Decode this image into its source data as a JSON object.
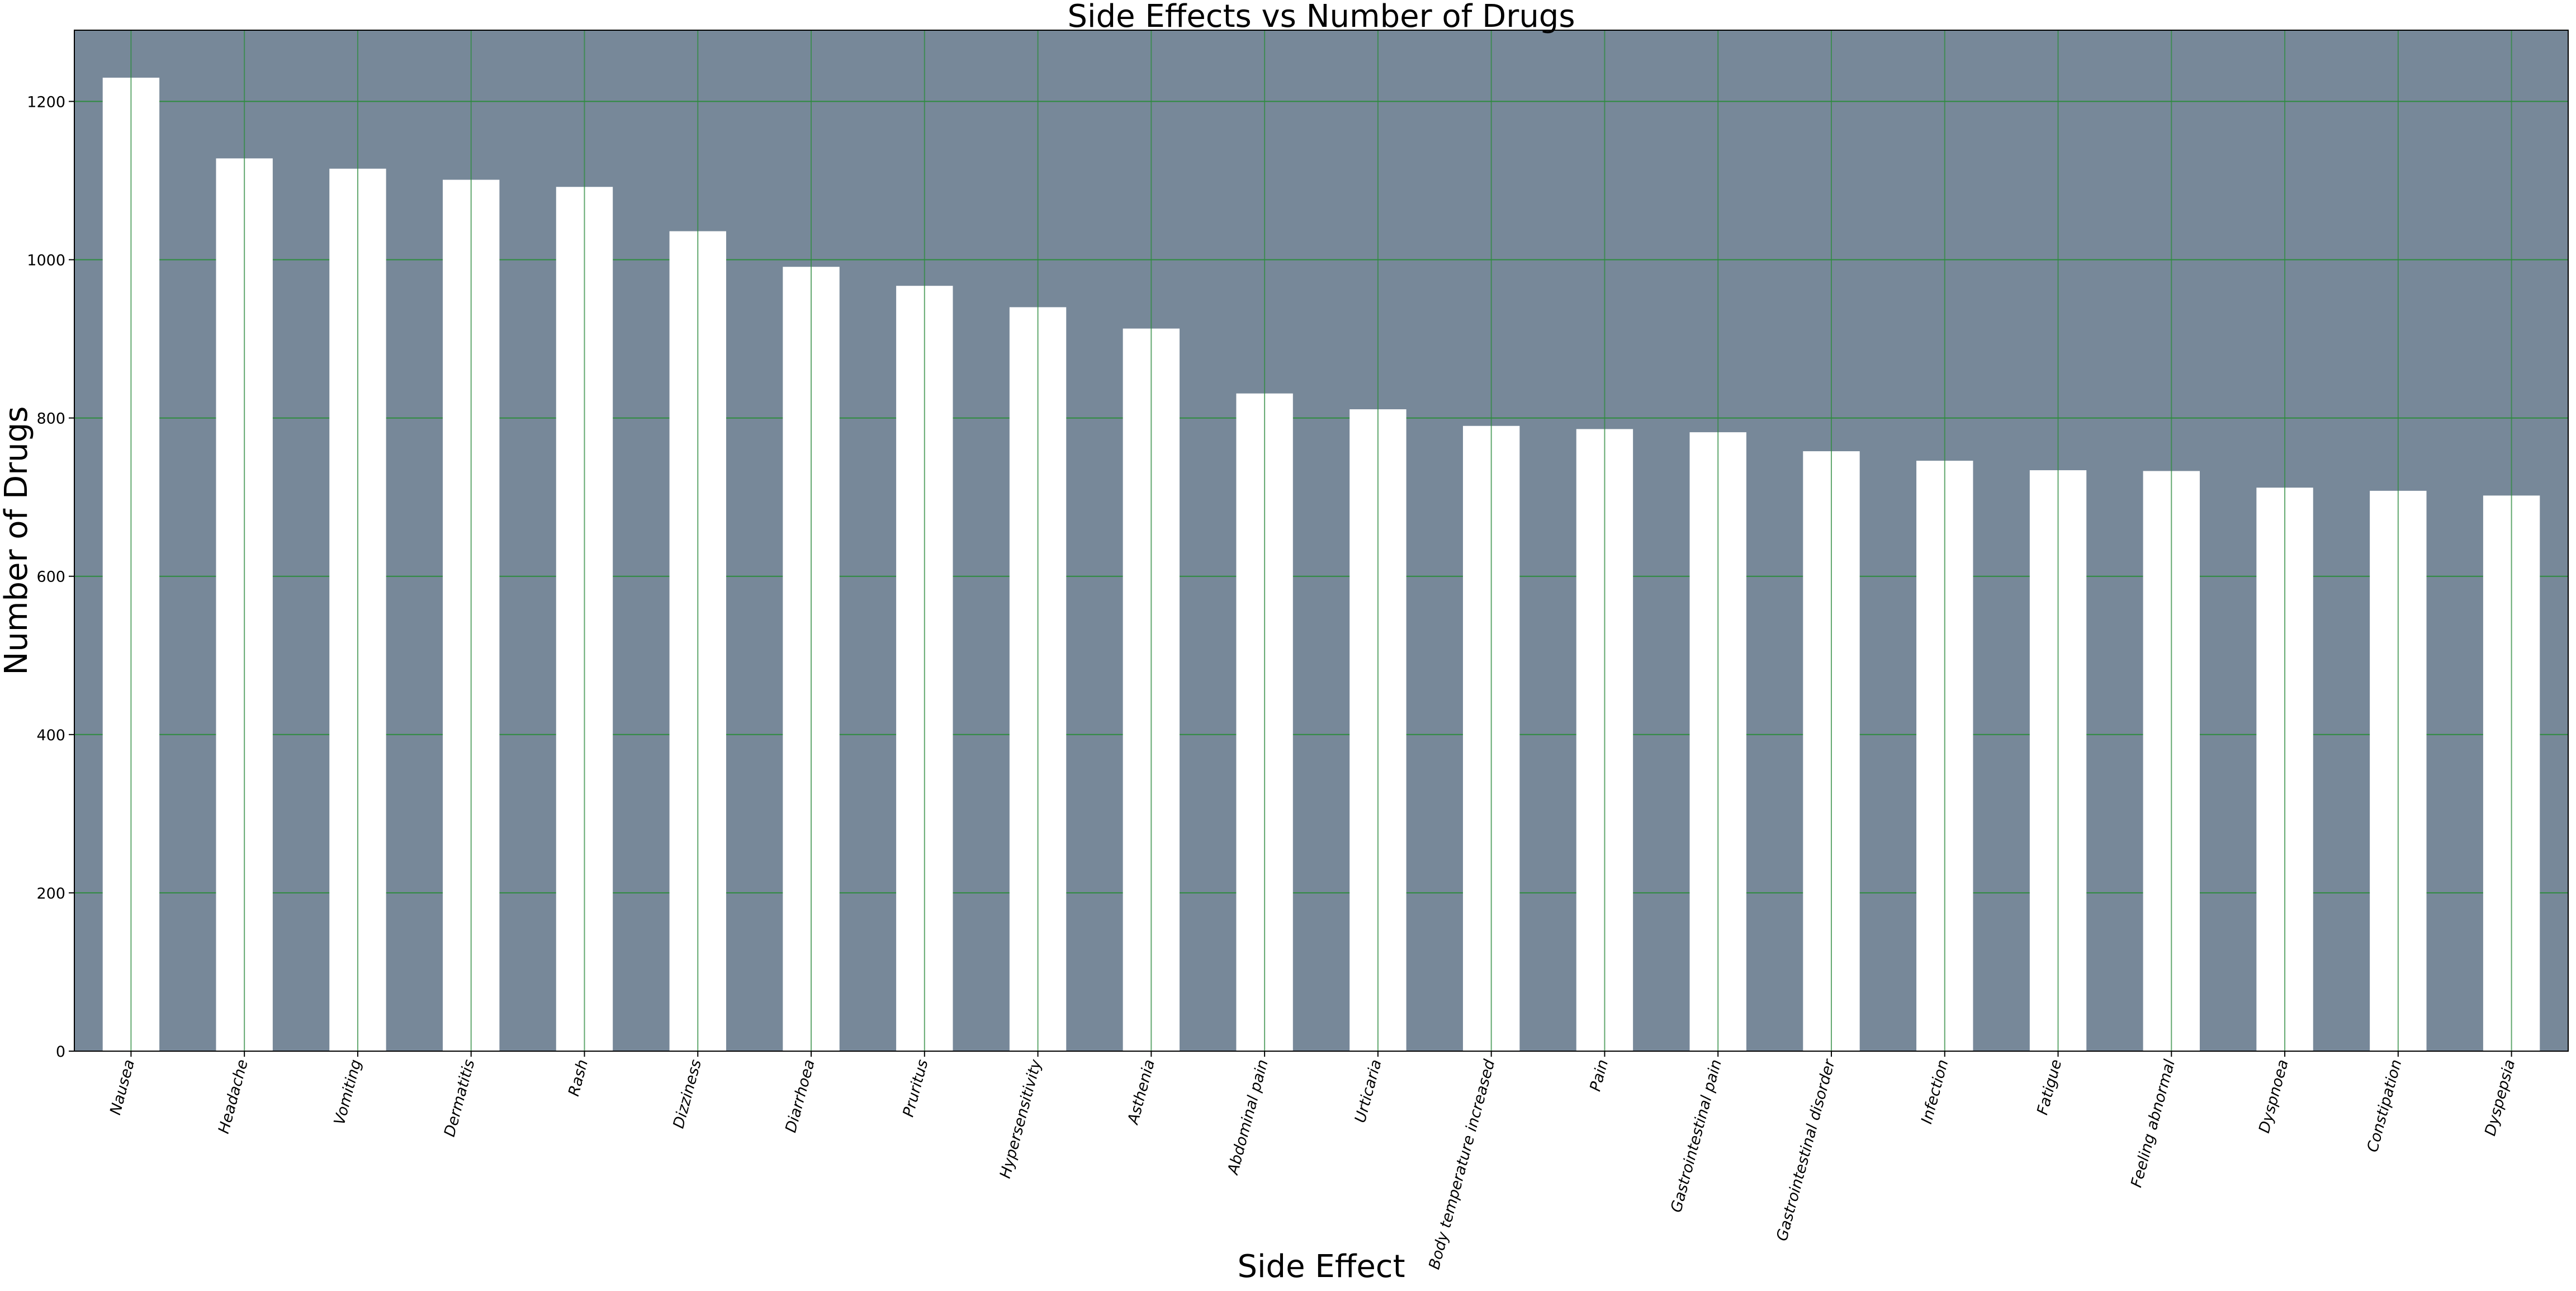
{
  "chart_data": {
    "type": "bar",
    "title": "Side Effects vs Number of Drugs",
    "xlabel": "Side Effect",
    "ylabel": "Number of Drugs",
    "categories": [
      "Nausea",
      "Headache",
      "Vomiting",
      "Dermatitis",
      "Rash",
      "Dizziness",
      "Diarrhoea",
      "Pruritus",
      "Hypersensitivity",
      "Asthenia",
      "Abdominal pain",
      "Urticaria",
      "Body temperature increased",
      "Pain",
      "Gastrointestinal pain",
      "Gastrointestinal disorder",
      "Infection",
      "Fatigue",
      "Feeling abnormal",
      "Dyspnoea",
      "Constipation",
      "Dyspepsia"
    ],
    "values": [
      1230,
      1128,
      1115,
      1101,
      1092,
      1036,
      991,
      967,
      940,
      913,
      831,
      811,
      790,
      786,
      782,
      758,
      746,
      734,
      733,
      712,
      708,
      702
    ],
    "ylim": [
      0,
      1290
    ],
    "yticks": [
      0,
      200,
      400,
      600,
      800,
      1000,
      1200
    ],
    "grid": true,
    "legend": "none",
    "colors": {
      "plot_background": "#778899",
      "bar": "#ffffff",
      "grid": "#2e8b3f"
    }
  }
}
